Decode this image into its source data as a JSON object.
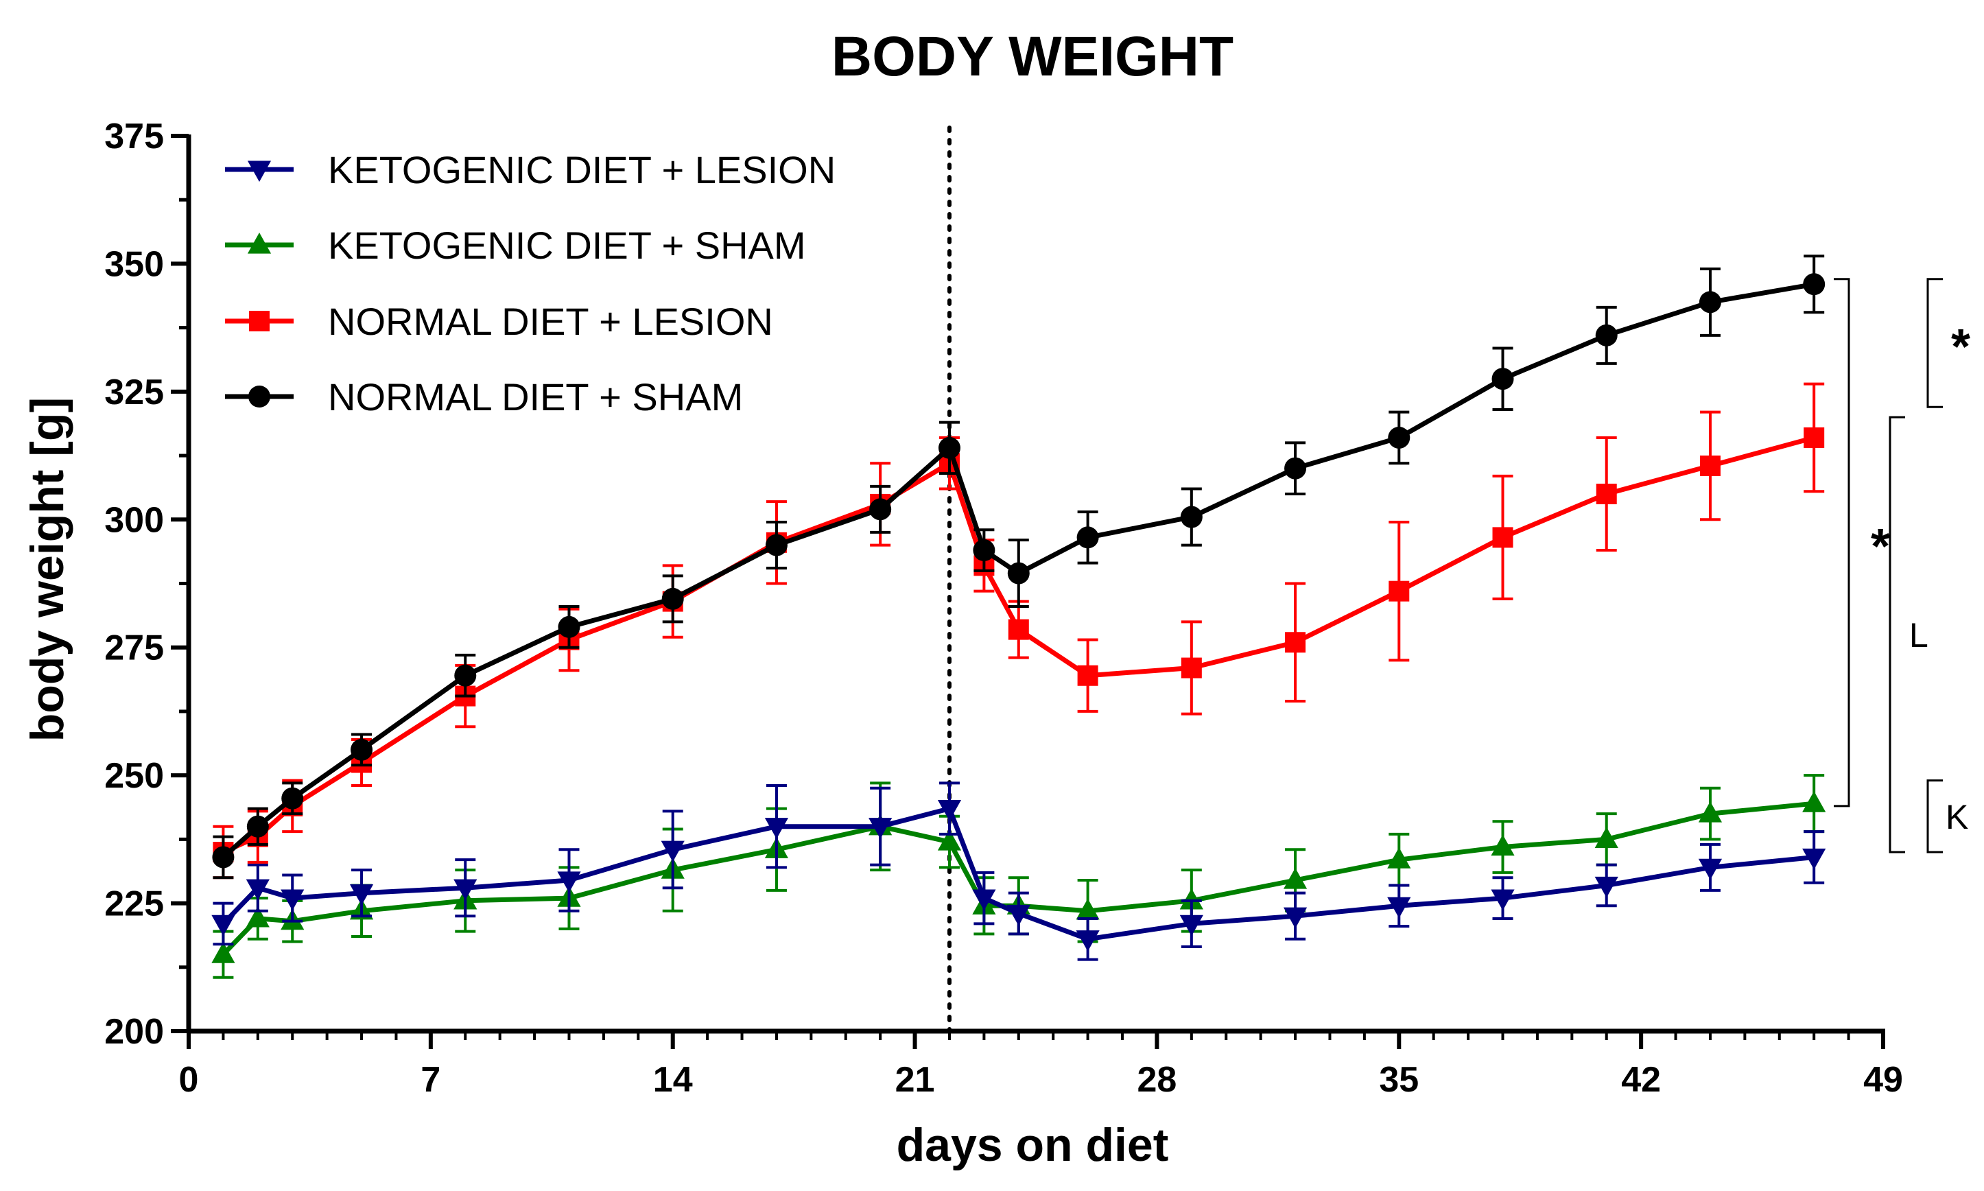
{
  "chart_data": {
    "type": "line",
    "title": "BODY WEIGHT",
    "xlabel": "days on diet",
    "ylabel": "body weight [g]",
    "xlim": [
      0,
      49
    ],
    "ylim": [
      200,
      375
    ],
    "xticks": [
      0,
      7,
      14,
      21,
      28,
      35,
      42,
      49
    ],
    "xtick_labels": [
      "0",
      "7",
      "14",
      "21",
      "28",
      "35",
      "42",
      "49"
    ],
    "yticks": [
      200,
      225,
      250,
      275,
      300,
      325,
      350,
      375
    ],
    "ytick_labels": [
      "200",
      "225",
      "250",
      "275",
      "300",
      "325",
      "350",
      "375"
    ],
    "vertical_reference_line": 22,
    "x": [
      1,
      2,
      3,
      5,
      8,
      11,
      14,
      17,
      20,
      22,
      23,
      24,
      26,
      29,
      32,
      35,
      38,
      41,
      44,
      47
    ],
    "series": [
      {
        "name": "KETOGENIC DIET + LESION",
        "color": "#000080",
        "marker": "triangle-down",
        "values": [
          221,
          228,
          226,
          227,
          228,
          229.5,
          235.5,
          240,
          240,
          243.5,
          226,
          223,
          218,
          221,
          222.5,
          224.5,
          226,
          228.5,
          232,
          234
        ],
        "errors": [
          4,
          4.5,
          4.5,
          4.5,
          5.5,
          6,
          7.5,
          8,
          7.5,
          5,
          5,
          4,
          4,
          4.5,
          4.5,
          4,
          4,
          4,
          4.5,
          5
        ]
      },
      {
        "name": "KETOGENIC DIET + SHAM",
        "color": "#008000",
        "marker": "triangle-up",
        "values": [
          215,
          222,
          221.5,
          223.5,
          225.5,
          226,
          231.5,
          235.5,
          240,
          237,
          224.5,
          224.5,
          223.5,
          225.5,
          229.5,
          233.5,
          236,
          237.5,
          242.5,
          244.5
        ],
        "errors": [
          4.5,
          4,
          4,
          5,
          6,
          6,
          8,
          8,
          8.5,
          5,
          5.5,
          5.5,
          6,
          6,
          6,
          5,
          5,
          5,
          5,
          5.5
        ]
      },
      {
        "name": "NORMAL DIET + LESION",
        "color": "#ff0000",
        "marker": "square",
        "values": [
          235,
          238,
          244,
          252.5,
          265.5,
          276.5,
          284,
          295.5,
          303,
          311,
          291,
          278.5,
          269.5,
          271,
          276,
          286,
          296.5,
          305,
          310.5,
          316
        ],
        "errors": [
          5,
          5,
          5,
          4.5,
          6,
          6,
          7,
          8,
          8,
          5,
          5,
          5.5,
          7,
          9,
          11.5,
          13.5,
          12,
          11,
          10.5,
          10.5
        ]
      },
      {
        "name": "NORMAL DIET + SHAM",
        "color": "#000000",
        "marker": "circle",
        "values": [
          234,
          240,
          245.5,
          255,
          269.5,
          279,
          284.5,
          295,
          302,
          314,
          294,
          289.5,
          296.5,
          300.5,
          310,
          316,
          327.5,
          336,
          342.5,
          346
        ],
        "errors": [
          4,
          3.5,
          3,
          3,
          4,
          4,
          4.5,
          4.5,
          4.5,
          5,
          4,
          6.5,
          5,
          5.5,
          5,
          5,
          6,
          5.5,
          6.5,
          5.5
        ]
      }
    ],
    "legend_position": "top-left",
    "significance_brackets": [
      {
        "label": "*",
        "from": 244,
        "to": 347
      },
      {
        "label": "*",
        "from": 322,
        "to": 347
      },
      {
        "label": "L",
        "from": 235,
        "to": 320
      },
      {
        "label": "K",
        "from": 235,
        "to": 249
      }
    ]
  }
}
